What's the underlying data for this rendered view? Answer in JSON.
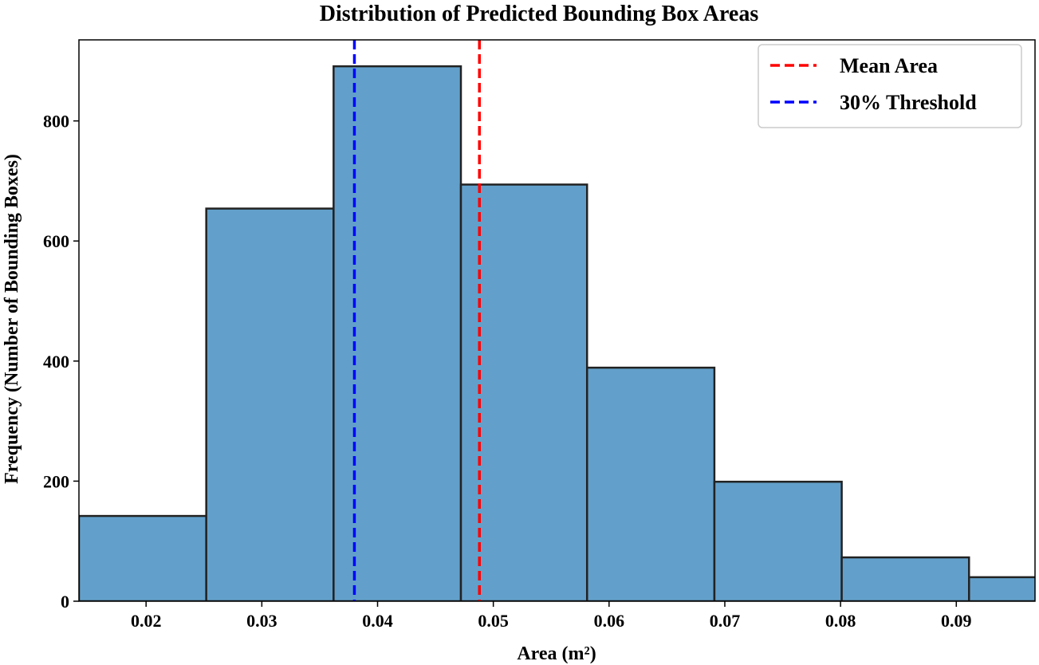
{
  "chart_data": {
    "type": "bar",
    "title": "Distribution of Predicted Bounding Box Areas",
    "xlabel": "Area (m²)",
    "ylabel": "Frequency (Number of Bounding Boxes)",
    "xlim": [
      0.0142,
      0.0968
    ],
    "ylim": [
      0,
      935
    ],
    "bin_edges": [
      0.0142,
      0.0252,
      0.0362,
      0.0472,
      0.0581,
      0.0691,
      0.0801,
      0.0911,
      0.1021
    ],
    "values": [
      142,
      654,
      891,
      694,
      389,
      199,
      73,
      40
    ],
    "x_ticks": [
      0.02,
      0.03,
      0.04,
      0.05,
      0.06,
      0.07,
      0.08,
      0.09
    ],
    "x_tick_labels": [
      "0.02",
      "0.03",
      "0.04",
      "0.05",
      "0.06",
      "0.07",
      "0.08",
      "0.09"
    ],
    "y_ticks": [
      0,
      200,
      400,
      600,
      800
    ],
    "y_tick_labels": [
      "0",
      "200",
      "400",
      "600",
      "800"
    ],
    "bar_color": "#62a0cb",
    "bar_edge_color": "#222222",
    "reference_lines": [
      {
        "name": "Mean Area",
        "x": 0.0488,
        "color": "#ff0000"
      },
      {
        "name": "30% Threshold",
        "x": 0.038,
        "color": "#0000ff"
      }
    ],
    "legend": {
      "position": "top-right"
    },
    "grid": false
  }
}
